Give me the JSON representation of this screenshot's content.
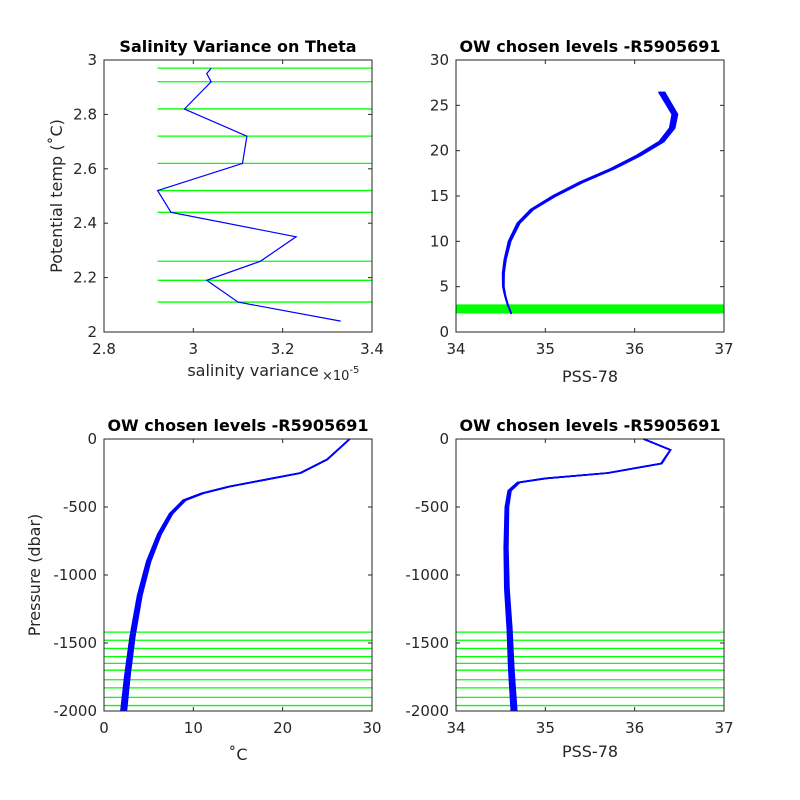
{
  "chart_data": [
    {
      "id": "p1",
      "type": "line",
      "title": "Salinity Variance on Theta",
      "xlabel": "salinity variance",
      "x_exponent_base": "×10",
      "x_exponent_power": "-5",
      "ylabel": "Potential temp (˚C)",
      "xlim": [
        2.8,
        3.4
      ],
      "ylim": [
        2,
        3
      ],
      "xticks": [
        2.8,
        3,
        3.2,
        3.4
      ],
      "xtick_labels": [
        "2.8",
        "3",
        "3.2",
        "3.4"
      ],
      "yticks": [
        2,
        2.2,
        2.4,
        2.6,
        2.8,
        3
      ],
      "ytick_labels": [
        "2",
        "2.2",
        "2.4",
        "2.6",
        "2.8",
        "3"
      ],
      "variance_line": {
        "color": "#0000ff",
        "x": [
          3.04,
          3.03,
          3.04,
          2.98,
          3.12,
          3.11,
          2.92,
          2.95,
          3.23,
          3.15,
          3.03,
          3.1,
          3.33
        ],
        "y": [
          2.97,
          2.95,
          2.92,
          2.82,
          2.72,
          2.62,
          2.52,
          2.44,
          2.35,
          2.26,
          2.19,
          2.11,
          2.04
        ]
      },
      "chosen_levels": {
        "color": "#00ff00",
        "x_start": 2.92,
        "y": [
          2.97,
          2.92,
          2.82,
          2.72,
          2.62,
          2.52,
          2.44,
          2.26,
          2.19,
          2.11
        ]
      }
    },
    {
      "id": "p2",
      "type": "line",
      "title": "OW chosen levels -R5905691",
      "xlabel": "PSS-78",
      "ylabel": "",
      "xlim": [
        34,
        37
      ],
      "ylim": [
        0,
        30
      ],
      "xticks": [
        34,
        35,
        36,
        37
      ],
      "xtick_labels": [
        "34",
        "35",
        "36",
        "37"
      ],
      "yticks": [
        0,
        5,
        10,
        15,
        20,
        25,
        30
      ],
      "ytick_labels": [
        "0",
        "5",
        "10",
        "15",
        "20",
        "25",
        "30"
      ],
      "profile": {
        "color": "#0000ff",
        "x": [
          34.62,
          34.58,
          34.55,
          34.53,
          34.53,
          34.55,
          34.6,
          34.7,
          34.85,
          35.1,
          35.4,
          35.75,
          36.05,
          36.3,
          36.42,
          36.45,
          36.3
        ],
        "y": [
          2.0,
          3.0,
          4.0,
          5.0,
          6.5,
          8.0,
          10.0,
          12.0,
          13.5,
          15.0,
          16.5,
          18.0,
          19.5,
          21.0,
          22.5,
          24.0,
          26.5
        ]
      },
      "chosen_levels": {
        "color": "#00ff00",
        "y": [
          2.11,
          2.19,
          2.26,
          2.35,
          2.44,
          2.52,
          2.62,
          2.72,
          2.82,
          2.92,
          2.97
        ]
      }
    },
    {
      "id": "p3",
      "type": "line",
      "title": "OW chosen levels -R5905691",
      "xlabel": "˚C",
      "ylabel": "Pressure (dbar)",
      "xlim": [
        0,
        30
      ],
      "ylim": [
        -2000,
        0
      ],
      "xticks": [
        0,
        10,
        20,
        30
      ],
      "xtick_labels": [
        "0",
        "10",
        "20",
        "30"
      ],
      "yticks": [
        -2000,
        -1500,
        -1000,
        -500,
        0
      ],
      "ytick_labels": [
        "-2000",
        "-1500",
        "-1000",
        "-500",
        "0"
      ],
      "profile": {
        "color": "#0000ff",
        "x": [
          27.5,
          25,
          22,
          18,
          14,
          11,
          9,
          7.5,
          6.2,
          5.0,
          4.0,
          3.2,
          2.6,
          2.2
        ],
        "y": [
          0,
          -150,
          -250,
          -300,
          -350,
          -400,
          -450,
          -550,
          -700,
          -900,
          -1150,
          -1450,
          -1750,
          -2000
        ]
      },
      "chosen_levels": {
        "color": "#00ff00",
        "y": [
          -1420,
          -1480,
          -1540,
          -1600,
          -1650,
          -1700,
          -1770,
          -1830,
          -1900,
          -1960
        ]
      }
    },
    {
      "id": "p4",
      "type": "line",
      "title": "OW chosen levels -R5905691",
      "xlabel": "PSS-78",
      "ylabel": "",
      "xlim": [
        34,
        37
      ],
      "ylim": [
        -2000,
        0
      ],
      "xticks": [
        34,
        35,
        36,
        37
      ],
      "xtick_labels": [
        "34",
        "35",
        "36",
        "37"
      ],
      "yticks": [
        -2000,
        -1500,
        -1000,
        -500,
        0
      ],
      "ytick_labels": [
        "-2000",
        "-1500",
        "-1000",
        "-500",
        "0"
      ],
      "profile": {
        "color": "#0000ff",
        "x": [
          36.1,
          36.4,
          36.3,
          35.7,
          35.0,
          34.7,
          34.6,
          34.57,
          34.56,
          34.57,
          34.6,
          34.62,
          34.65
        ],
        "y": [
          0,
          -80,
          -180,
          -250,
          -290,
          -320,
          -380,
          -500,
          -800,
          -1100,
          -1400,
          -1700,
          -2000
        ]
      },
      "chosen_levels": {
        "color": "#00ff00",
        "y": [
          -1420,
          -1480,
          -1540,
          -1600,
          -1650,
          -1700,
          -1770,
          -1830,
          -1900,
          -1960
        ]
      }
    }
  ]
}
